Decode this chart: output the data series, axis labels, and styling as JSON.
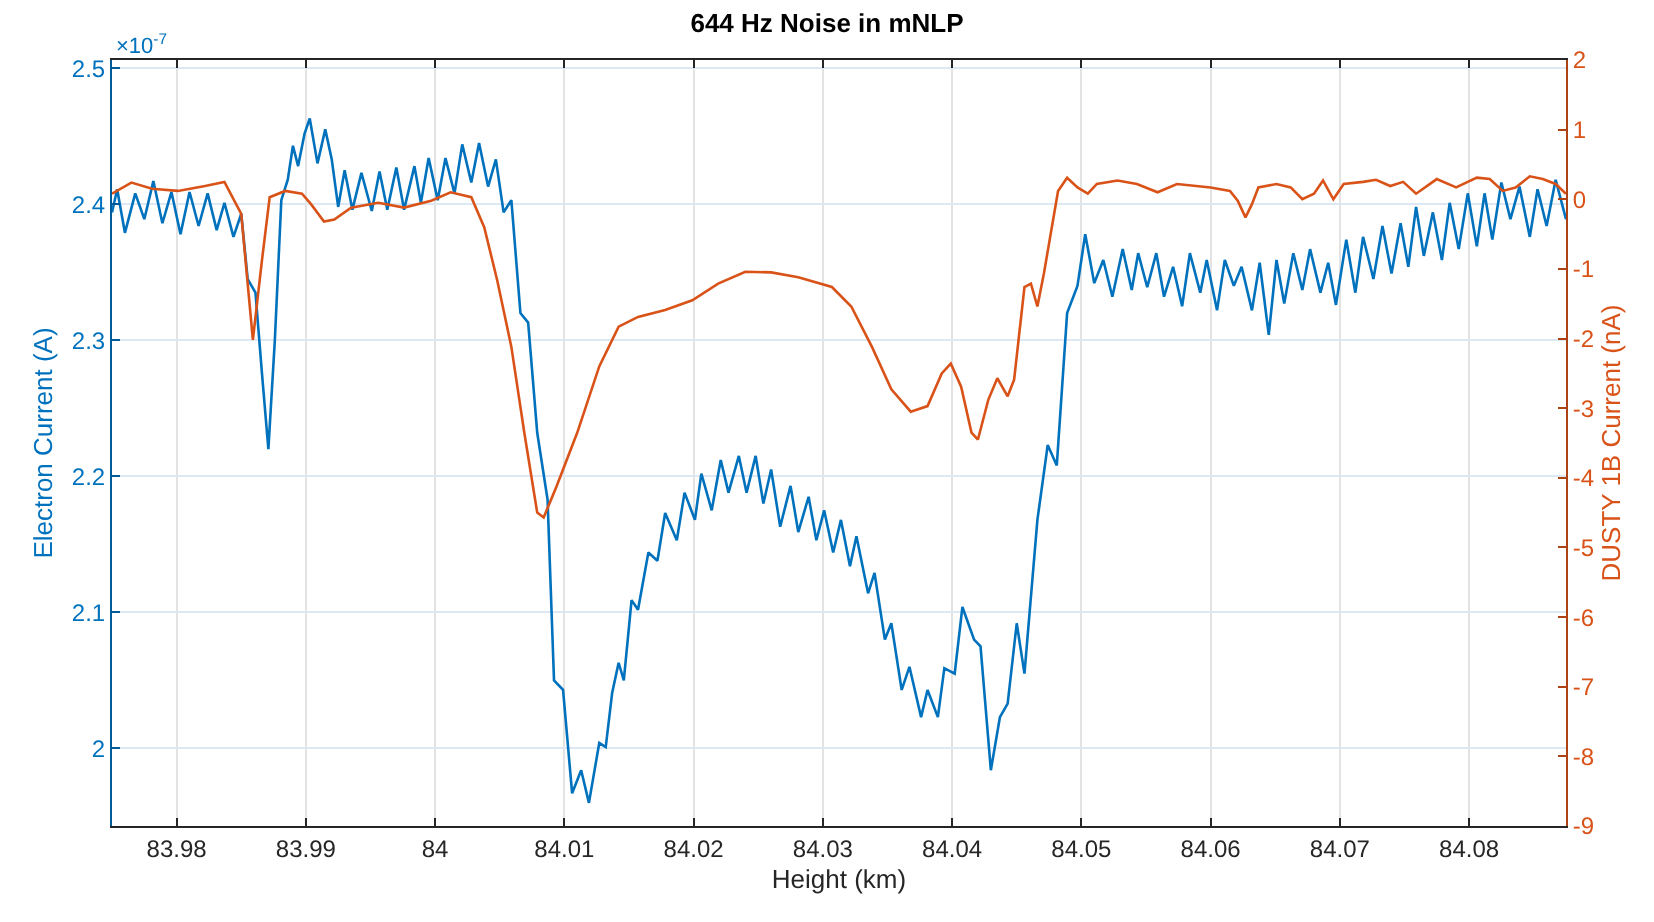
{
  "chart_data": {
    "type": "line",
    "title": "644 Hz Noise in mNLP",
    "xlabel": "Height (km)",
    "ylabel": "Electron Current (A)",
    "y2label": "DUSTY 1B Current (nA)",
    "annotations": [
      "×10$^{-7}$"
    ],
    "xlim": [
      83.975,
      84.0875
    ],
    "xticks": [
      83.98,
      83.99,
      84,
      84.01,
      84.02,
      84.03,
      84.04,
      84.05,
      84.06,
      84.07,
      84.08
    ],
    "ylim": [
      1.943,
      2.506
    ],
    "yticks": [
      2,
      2.1,
      2.2,
      2.3,
      2.4,
      2.5
    ],
    "y2lim": [
      -9,
      2
    ],
    "y2ticks": [
      -9,
      -8,
      -7,
      -6,
      -5,
      -4,
      -3,
      -2,
      -1,
      0,
      1,
      2
    ],
    "grid": true,
    "line_style": "solid",
    "marker": "none",
    "series": [
      {
        "color": "#0072bd",
        "x": [
          83.975,
          83.9754,
          83.976,
          83.9768,
          83.9775,
          83.9782,
          83.9789,
          83.9796,
          83.9803,
          83.981,
          83.9817,
          83.9824,
          83.9831,
          83.9837,
          83.9844,
          83.985,
          83.9855,
          83.9861,
          83.9866,
          83.9871,
          83.9876,
          83.9881,
          83.9886,
          83.989,
          83.9894,
          83.9899,
          83.9903,
          83.9909,
          83.9915,
          83.992,
          83.9925,
          83.993,
          83.9936,
          83.9943,
          83.9951,
          83.9957,
          83.9963,
          83.997,
          83.9976,
          83.9984,
          83.9989,
          83.9995,
          84.0002,
          84.0008,
          84.0015,
          84.0021,
          84.0028,
          84.0034,
          84.0041,
          84.0047,
          84.0053,
          84.0059,
          84.0066,
          84.0072,
          84.0079,
          84.0087,
          84.0092,
          84.0099,
          84.0106,
          84.0113,
          84.0119,
          84.0127,
          84.0132,
          84.0137,
          84.0142,
          84.0146,
          84.0152,
          84.0157,
          84.0165,
          84.0172,
          84.0178,
          84.0187,
          84.0193,
          84.0201,
          84.0206,
          84.0214,
          84.0221,
          84.0227,
          84.0235,
          84.0241,
          84.0248,
          84.0254,
          84.026,
          84.0267,
          84.0275,
          84.0281,
          84.0289,
          84.0295,
          84.0301,
          84.0308,
          84.0314,
          84.0321,
          84.0326,
          84.0335,
          84.034,
          84.0348,
          84.0353,
          84.0361,
          84.0367,
          84.0376,
          84.0381,
          84.0389,
          84.0394,
          84.0402,
          84.0408,
          84.0417,
          84.0422,
          84.043,
          84.0437,
          84.0443,
          84.045,
          84.0456,
          84.0466,
          84.0474,
          84.0481,
          84.0489,
          84.0497,
          84.0503,
          84.051,
          84.0517,
          84.0524,
          84.0532,
          84.0539,
          84.0544,
          84.0551,
          84.0558,
          84.0564,
          84.0571,
          84.0578,
          84.0584,
          84.0592,
          84.0597,
          84.0605,
          84.0611,
          84.0618,
          84.0624,
          84.0632,
          84.0638,
          84.0645,
          84.0651,
          84.0657,
          84.0664,
          84.0671,
          84.0677,
          84.0685,
          84.0691,
          84.0697,
          84.0705,
          84.0712,
          84.0718,
          84.0726,
          84.0733,
          84.074,
          84.0747,
          84.0753,
          84.0759,
          84.0765,
          84.0772,
          84.0779,
          84.0785,
          84.0792,
          84.0799,
          84.0806,
          84.0812,
          84.0818,
          84.0825,
          84.0832,
          84.0839,
          84.0847,
          84.0853,
          84.086,
          84.0867,
          84.0875
        ],
        "values": [
          2.394,
          2.411,
          2.379,
          2.408,
          2.389,
          2.417,
          2.386,
          2.409,
          2.378,
          2.409,
          2.384,
          2.408,
          2.381,
          2.401,
          2.376,
          2.393,
          2.345,
          2.335,
          2.276,
          2.22,
          2.3,
          2.403,
          2.418,
          2.443,
          2.428,
          2.452,
          2.463,
          2.43,
          2.455,
          2.433,
          2.398,
          2.425,
          2.396,
          2.423,
          2.395,
          2.424,
          2.396,
          2.427,
          2.396,
          2.428,
          2.401,
          2.434,
          2.403,
          2.434,
          2.408,
          2.444,
          2.416,
          2.445,
          2.413,
          2.433,
          2.394,
          2.403,
          2.32,
          2.313,
          2.232,
          2.183,
          2.05,
          2.043,
          1.967,
          1.984,
          1.96,
          2.004,
          2.001,
          2.041,
          2.063,
          2.05,
          2.109,
          2.102,
          2.144,
          2.138,
          2.173,
          2.153,
          2.188,
          2.168,
          2.202,
          2.175,
          2.212,
          2.188,
          2.215,
          2.188,
          2.215,
          2.18,
          2.205,
          2.163,
          2.193,
          2.159,
          2.185,
          2.153,
          2.175,
          2.144,
          2.168,
          2.134,
          2.156,
          2.114,
          2.129,
          2.08,
          2.092,
          2.043,
          2.06,
          2.023,
          2.043,
          2.023,
          2.059,
          2.055,
          2.104,
          2.08,
          2.075,
          1.984,
          2.023,
          2.033,
          2.092,
          2.055,
          2.168,
          2.223,
          2.208,
          2.32,
          2.34,
          2.378,
          2.342,
          2.359,
          2.332,
          2.367,
          2.337,
          2.364,
          2.339,
          2.364,
          2.332,
          2.354,
          2.325,
          2.364,
          2.335,
          2.359,
          2.322,
          2.359,
          2.34,
          2.354,
          2.322,
          2.357,
          2.304,
          2.359,
          2.327,
          2.364,
          2.337,
          2.367,
          2.335,
          2.357,
          2.326,
          2.374,
          2.335,
          2.376,
          2.345,
          2.384,
          2.349,
          2.386,
          2.354,
          2.398,
          2.362,
          2.394,
          2.359,
          2.401,
          2.367,
          2.408,
          2.369,
          2.408,
          2.374,
          2.416,
          2.389,
          2.413,
          2.376,
          2.411,
          2.384,
          2.418,
          2.389
        ]
      },
      {
        "color": "#d95319",
        "axis": "y2",
        "x": [
          83.975,
          83.9765,
          83.9781,
          83.9801,
          83.9822,
          83.9837,
          83.985,
          83.9859,
          83.9866,
          83.9872,
          83.9884,
          83.9897,
          83.9904,
          83.9914,
          83.9922,
          83.9935,
          83.9956,
          83.9976,
          83.9997,
          84.0012,
          84.0028,
          84.0038,
          84.0048,
          84.0059,
          84.0069,
          84.0079,
          84.0084,
          84.0094,
          84.011,
          84.0127,
          84.0142,
          84.0157,
          84.0178,
          84.0199,
          84.0219,
          84.024,
          84.026,
          84.0281,
          84.0307,
          84.0322,
          84.0338,
          84.0353,
          84.0368,
          84.0381,
          84.0392,
          84.0399,
          84.0407,
          84.0415,
          84.042,
          84.0428,
          84.0435,
          84.0443,
          84.0448,
          84.0456,
          84.0461,
          84.0466,
          84.0471,
          84.0482,
          84.0489,
          84.0497,
          84.0505,
          84.0512,
          84.0528,
          84.0543,
          84.0559,
          84.0574,
          84.06,
          84.0615,
          84.0621,
          84.0627,
          84.0632,
          84.0637,
          84.0651,
          84.0662,
          84.0671,
          84.068,
          84.0687,
          84.0695,
          84.0703,
          84.0718,
          84.0728,
          84.0739,
          84.0749,
          84.0759,
          84.0775,
          84.079,
          84.0806,
          84.0816,
          84.0826,
          84.0836,
          84.0847,
          84.0857,
          84.0867,
          84.0875
        ],
        "values": [
          0.08,
          0.24,
          0.15,
          0.12,
          0.19,
          0.25,
          -0.21,
          -2.02,
          -0.88,
          0.03,
          0.12,
          0.08,
          -0.07,
          -0.32,
          -0.29,
          -0.12,
          -0.05,
          -0.12,
          -0.02,
          0.1,
          0.03,
          -0.4,
          -1.16,
          -2.12,
          -3.35,
          -4.5,
          -4.57,
          -4.12,
          -3.35,
          -2.4,
          -1.83,
          -1.69,
          -1.59,
          -1.45,
          -1.21,
          -1.04,
          -1.05,
          -1.12,
          -1.26,
          -1.54,
          -2.12,
          -2.73,
          -3.05,
          -2.97,
          -2.5,
          -2.36,
          -2.69,
          -3.35,
          -3.45,
          -2.88,
          -2.57,
          -2.83,
          -2.59,
          -1.26,
          -1.21,
          -1.54,
          -1.07,
          0.12,
          0.31,
          0.17,
          0.08,
          0.22,
          0.27,
          0.22,
          0.1,
          0.22,
          0.17,
          0.12,
          -0.02,
          -0.26,
          -0.07,
          0.17,
          0.22,
          0.17,
          0.0,
          0.08,
          0.27,
          0.0,
          0.22,
          0.25,
          0.28,
          0.19,
          0.25,
          0.08,
          0.29,
          0.17,
          0.31,
          0.29,
          0.12,
          0.17,
          0.33,
          0.29,
          0.22,
          0.08
        ]
      }
    ]
  }
}
